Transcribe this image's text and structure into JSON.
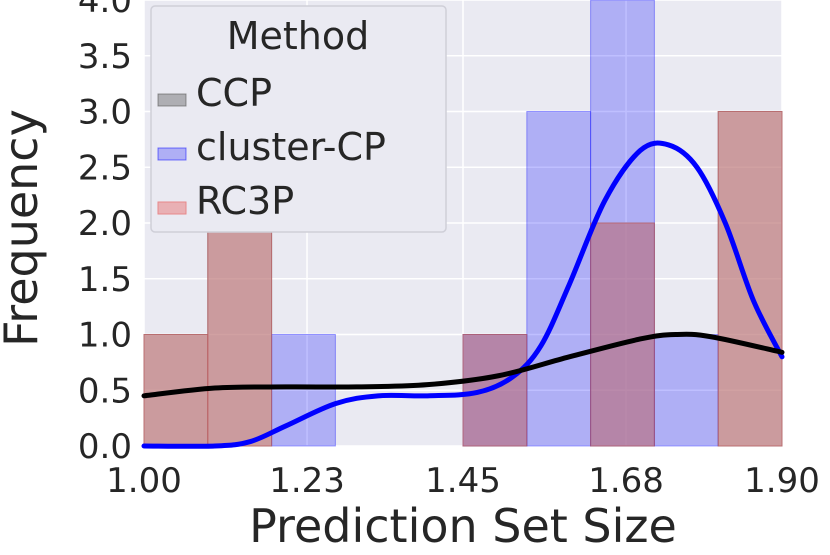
{
  "chart_data": {
    "type": "histogram",
    "xlabel": "Prediction Set Size",
    "ylabel": "Frequency",
    "xlim": [
      1.0,
      1.9
    ],
    "ylim": [
      0.0,
      4.0
    ],
    "x_ticks": [
      "1.00",
      "1.23",
      "1.45",
      "1.68",
      "1.90"
    ],
    "y_ticks": [
      "0.0",
      "0.5",
      "1.0",
      "1.5",
      "2.0",
      "2.5",
      "3.0",
      "3.5",
      "4.0"
    ],
    "grid": true,
    "legend": {
      "title": "Method",
      "placement": "top-left"
    },
    "bin_edges": [
      1.0,
      1.09,
      1.18,
      1.27,
      1.36,
      1.45,
      1.54,
      1.63,
      1.72,
      1.81,
      1.9
    ],
    "series": [
      {
        "name": "CCP",
        "color": "#555555",
        "counts": [
          1,
          2,
          0,
          0,
          0,
          1,
          0,
          2,
          0,
          3
        ],
        "kde": [
          [
            1.0,
            0.45
          ],
          [
            1.1,
            0.52
          ],
          [
            1.2,
            0.53
          ],
          [
            1.3,
            0.53
          ],
          [
            1.4,
            0.55
          ],
          [
            1.5,
            0.63
          ],
          [
            1.6,
            0.8
          ],
          [
            1.7,
            0.96
          ],
          [
            1.75,
            1.0
          ],
          [
            1.8,
            0.98
          ],
          [
            1.9,
            0.84
          ]
        ]
      },
      {
        "name": "cluster-CP",
        "color": "#0000ff",
        "counts": [
          0,
          0,
          1,
          0,
          0,
          1,
          3,
          4,
          1,
          0
        ],
        "kde": [
          [
            1.0,
            0.0
          ],
          [
            1.1,
            0.0
          ],
          [
            1.15,
            0.04
          ],
          [
            1.2,
            0.18
          ],
          [
            1.27,
            0.38
          ],
          [
            1.33,
            0.45
          ],
          [
            1.4,
            0.45
          ],
          [
            1.47,
            0.48
          ],
          [
            1.52,
            0.62
          ],
          [
            1.56,
            0.9
          ],
          [
            1.6,
            1.45
          ],
          [
            1.65,
            2.2
          ],
          [
            1.7,
            2.65
          ],
          [
            1.74,
            2.7
          ],
          [
            1.78,
            2.5
          ],
          [
            1.82,
            2.0
          ],
          [
            1.86,
            1.3
          ],
          [
            1.9,
            0.8
          ]
        ]
      },
      {
        "name": "RC3P",
        "color": "#e8888a",
        "counts": [
          1,
          2,
          0,
          0,
          0,
          1,
          0,
          2,
          0,
          3
        ],
        "kde": [
          [
            1.0,
            0.45
          ],
          [
            1.1,
            0.52
          ],
          [
            1.2,
            0.53
          ],
          [
            1.3,
            0.53
          ],
          [
            1.4,
            0.55
          ],
          [
            1.5,
            0.63
          ],
          [
            1.6,
            0.8
          ],
          [
            1.7,
            0.96
          ],
          [
            1.75,
            1.0
          ],
          [
            1.8,
            0.98
          ],
          [
            1.9,
            0.84
          ]
        ]
      }
    ]
  }
}
